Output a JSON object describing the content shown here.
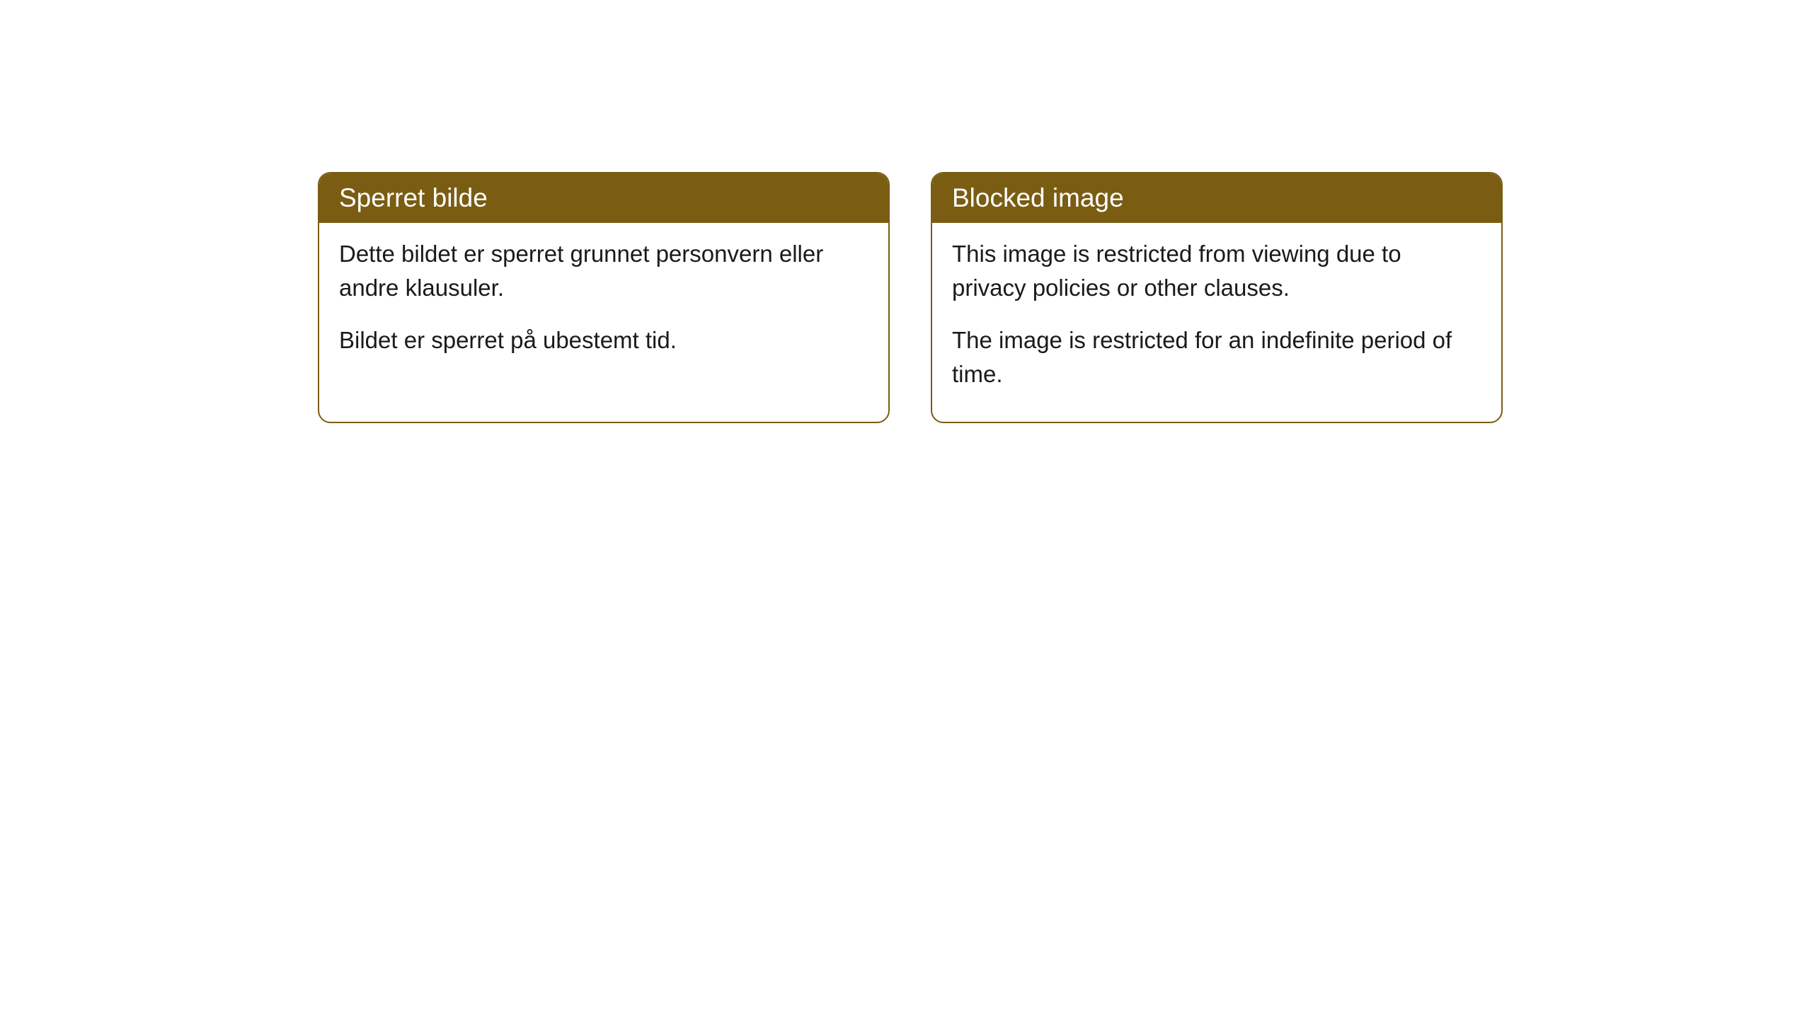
{
  "cards": [
    {
      "title": "Sperret bilde",
      "p1": "Dette bildet er sperret grunnet personvern eller andre klausuler.",
      "p2": "Bildet er sperret på ubestemt tid."
    },
    {
      "title": "Blocked image",
      "p1": "This image is restricted from viewing due to privacy policies or other clauses.",
      "p2": "The image is restricted for an indefinite period of time."
    }
  ],
  "style": {
    "header_bg": "#7a5d13",
    "header_text": "#ffffff",
    "border_color": "#7a5d13",
    "body_bg": "#ffffff",
    "body_text": "#1a1a1a",
    "border_radius": 18,
    "title_fontsize": 37,
    "body_fontsize": 33
  }
}
